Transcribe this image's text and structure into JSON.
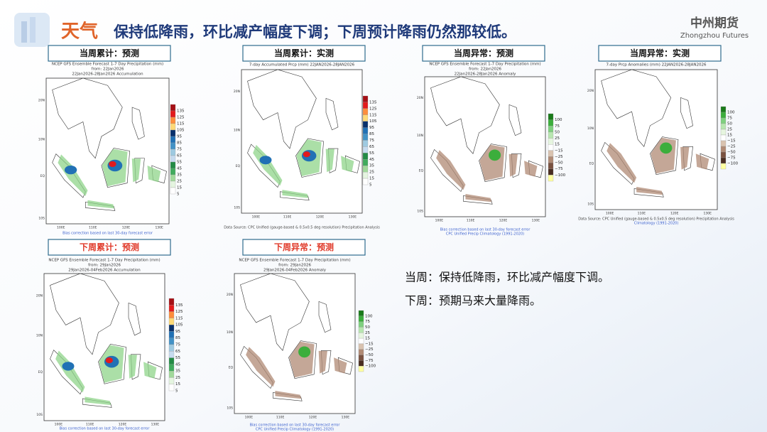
{
  "header": {
    "topic": "天气",
    "title": "保持低降雨，环比减产幅度下调；下周预计降雨仍然那较低。",
    "logo_cn": "中州期货",
    "logo_en": "Zhongzhou Futures"
  },
  "lat_labels": [
    "20N",
    "10N",
    "EQ",
    "10S"
  ],
  "lon_labels": [
    "100E",
    "110E",
    "120E",
    "130E"
  ],
  "legends": {
    "accumulation": [
      "135",
      "125",
      "115",
      "105",
      "95",
      "85",
      "75",
      "65",
      "55",
      "45",
      "35",
      "25",
      "15",
      "5"
    ],
    "anomaly": [
      "100",
      "75",
      "50",
      "25",
      "15",
      "−15",
      "−25",
      "−50",
      "−75",
      "−100"
    ]
  },
  "panels": [
    {
      "label": "当周累计：预测",
      "header": [
        "NCEP GFS Ensemble Forecast 1-7 Day Precipitation (mm)",
        "from: 22Jan2026",
        "22Jan2026-28Jan2026 Accumulation"
      ],
      "footer": [
        "Bias correction based on last 30-day forecast error"
      ]
    },
    {
      "label": "当周累计：实测",
      "header": [
        "7-day Accumulated Prcp (mm) 22JAN2026-28JAN2026"
      ],
      "footer": [
        "Data Source: CPC Unified (gauge-based & 0.5x0.5 deg resolution) Precipitation Analysis"
      ]
    },
    {
      "label": "当周异常：预测",
      "header": [
        "NCEP GFS Ensemble Forecast 1-7 Day Precipitation (mm)",
        "from: 22Jan2026",
        "22Jan2026-28Jan2026 Anomaly"
      ],
      "footer": [
        "Bias correction based on last 30-day forecast error",
        "CPC Unified Precip Climatology (1991-2020)"
      ]
    },
    {
      "label": "当周异常：实测",
      "header": [
        "7-day Prcp Anomalies (mm) 22JAN2026-28JAN2026"
      ],
      "footer": [
        "Data Source: CPC Unified (gauge-based & 0.5x0.5 deg resolution) Precipitation Analysis",
        "Climatology (1991-2020)"
      ]
    },
    {
      "label": "下周累计：预测",
      "header": [
        "NCEP GFS Ensemble Forecast 1-7 Day Precipitation (mm)",
        "from: 29Jan2026",
        "29Jan2026-04Feb2026 Accumulation"
      ],
      "footer": [
        "Bias correction based on last 30-day forecast error"
      ]
    },
    {
      "label": "下周异常：预测",
      "header": [
        "NCEP GFS Ensemble Forecast 1-7 Day Precipitation (mm)",
        "from: 29Jan2026",
        "29Jan2026-04Feb2026 Anomaly"
      ],
      "footer": [
        "Bias correction based on last 30-day forecast error",
        "CPC Unified Precip Climatology (1991-2020)"
      ]
    }
  ],
  "notes": [
    "当周：保持低降雨，环比减产幅度下调。",
    "下周：预期马来大量降雨。"
  ]
}
